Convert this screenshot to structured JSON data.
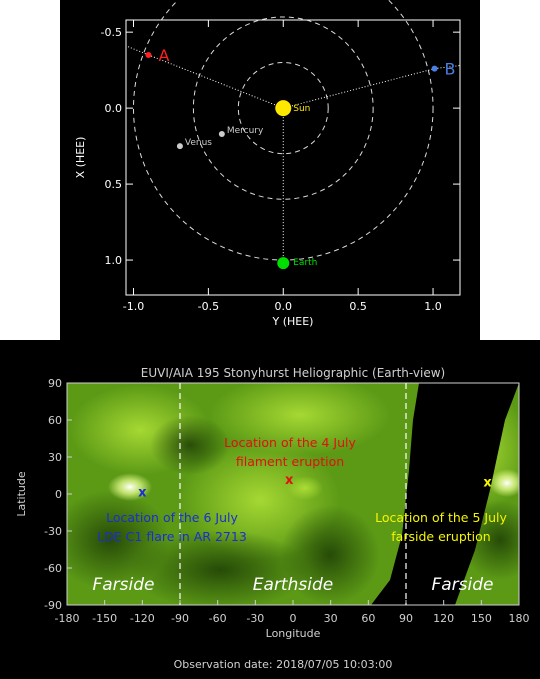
{
  "chart_data": [
    {
      "type": "scatter",
      "title": "",
      "xlabel": "Y (HEE)",
      "ylabel": "X (HEE)",
      "xlim": [
        -1.05,
        1.18
      ],
      "ylim": [
        -0.58,
        1.23
      ],
      "y_inverted": true,
      "xticks": [
        "-1.0",
        "-0.5",
        "0.0",
        "0.5",
        "1.0"
      ],
      "xtick_values": [
        -1.0,
        -0.5,
        0.0,
        0.5,
        1.0
      ],
      "yticks": [
        "-0.5",
        "0.0",
        "0.5",
        "1.0"
      ],
      "ytick_values": [
        -0.5,
        0.0,
        0.5,
        1.0
      ],
      "orbit_radii": [
        0.3,
        0.6,
        1.0
      ],
      "points": [
        {
          "label": "A",
          "y_hee": -0.9,
          "x_hee": -0.35,
          "color": "#ff2020"
        },
        {
          "label": "B",
          "y_hee": 1.01,
          "x_hee": -0.26,
          "color": "#4a7fe6"
        },
        {
          "label": "Sun",
          "y_hee": 0.0,
          "x_hee": 0.0,
          "color": "#ffe800"
        },
        {
          "label": "Mercury",
          "y_hee": -0.41,
          "x_hee": 0.17,
          "color": "#cccccc"
        },
        {
          "label": "Venus",
          "y_hee": -0.69,
          "x_hee": 0.25,
          "color": "#cccccc"
        },
        {
          "label": "Earth",
          "y_hee": 0.0,
          "x_hee": 1.02,
          "color": "#00e000"
        }
      ],
      "grid": false
    },
    {
      "type": "heatmap",
      "title": "EUVI/AIA 195 Stonyhurst Heliographic (Earth-view)",
      "xlabel": "Longitude",
      "ylabel": "Latitude",
      "xlim": [
        -180,
        180
      ],
      "ylim": [
        -90,
        90
      ],
      "xticks": [
        "-180",
        "-150",
        "-120",
        "-90",
        "-60",
        "-30",
        "0",
        "30",
        "60",
        "90",
        "120",
        "150",
        "180"
      ],
      "xtick_values": [
        -180,
        -150,
        -120,
        -90,
        -60,
        -30,
        0,
        30,
        60,
        90,
        120,
        150,
        180
      ],
      "yticks": [
        "90",
        "60",
        "30",
        "0",
        "-30",
        "-60",
        "-90"
      ],
      "ytick_values": [
        90,
        60,
        30,
        0,
        -30,
        -60,
        -90
      ],
      "boundaries": [
        -90,
        90
      ],
      "regions": [
        "Farside",
        "Earthside",
        "Farside"
      ],
      "markers": [
        {
          "label": "x",
          "lon": -120,
          "lat": 2,
          "color": "#1a2fd0",
          "annotation": [
            "Location of the 6 July",
            "LDE C1 flare in AR 2713"
          ]
        },
        {
          "label": "x",
          "lon": -3,
          "lat": 12,
          "color": "#e01010",
          "annotation": [
            "Location of the 4 July",
            "filament eruption"
          ]
        },
        {
          "label": "x",
          "lon": 155,
          "lat": 10,
          "color": "#f5f500",
          "annotation": [
            "Location of the 5 July",
            "farside eruption"
          ]
        }
      ],
      "footer": "Observation date: 2018/07/05 10:03:00"
    }
  ]
}
